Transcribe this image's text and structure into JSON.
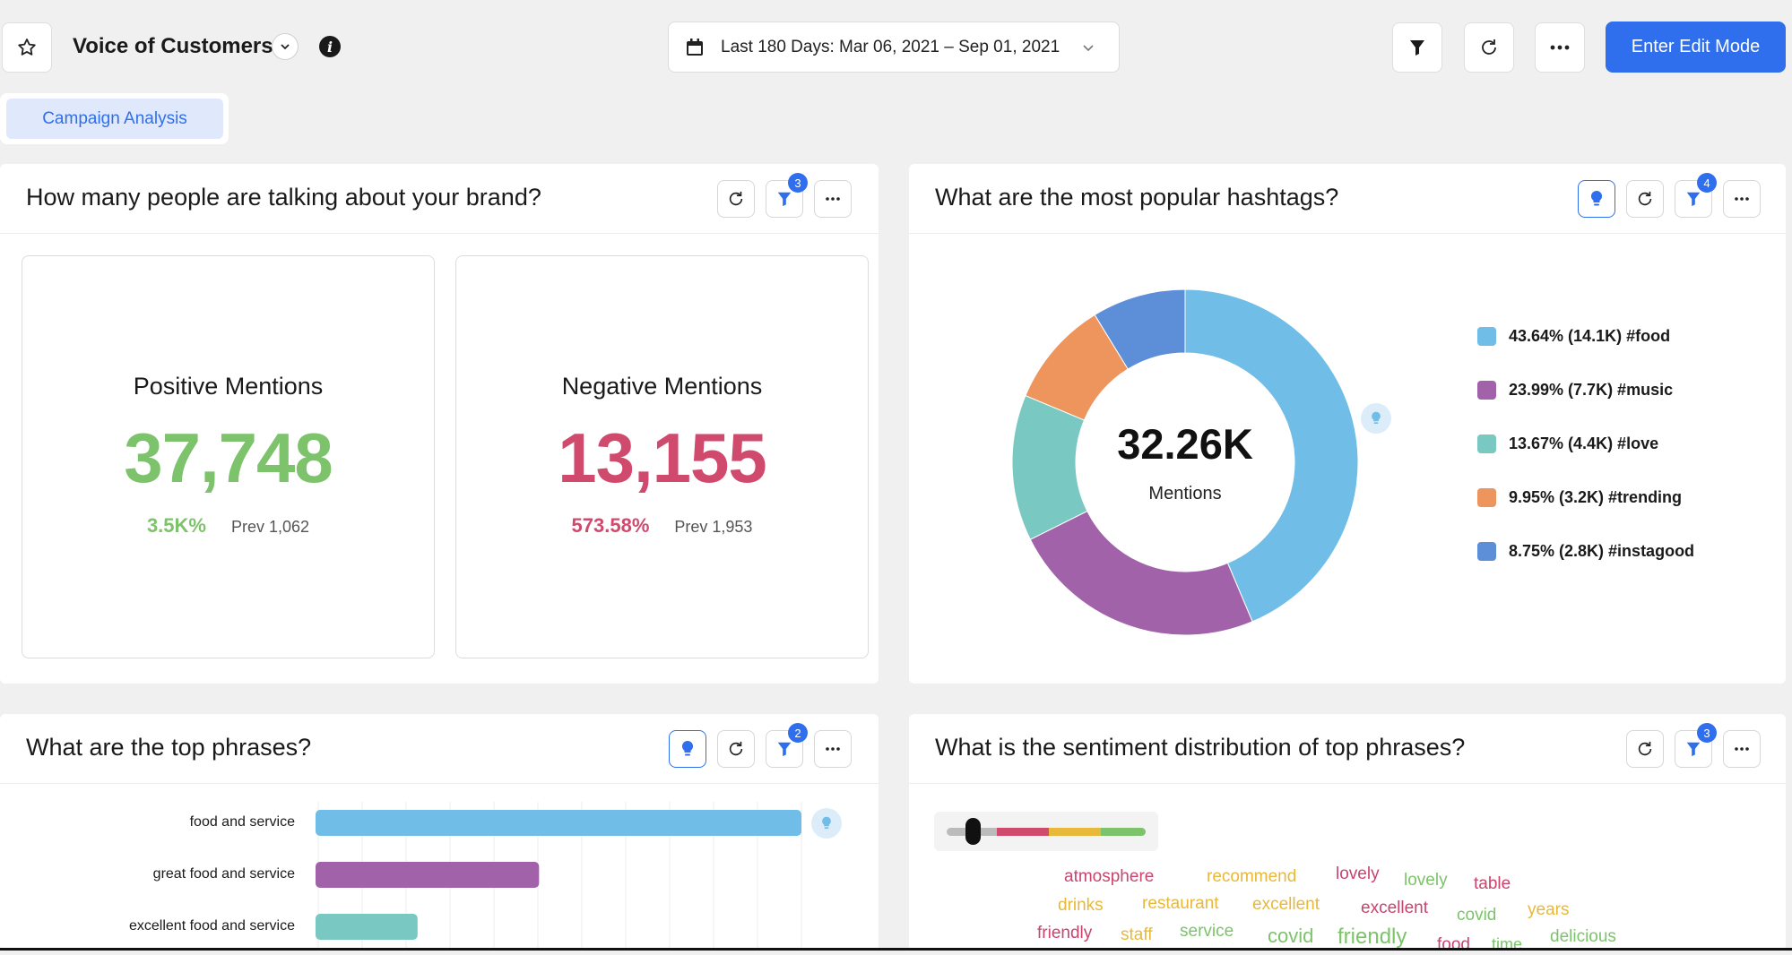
{
  "header": {
    "title": "Voice of Customers",
    "date_range": "Last 180 Days: Mar 06, 2021 – Sep 01, 2021",
    "edit_button": "Enter Edit Mode"
  },
  "tabs": [
    {
      "label": "Campaign Analysis"
    }
  ],
  "widgets": {
    "mentions": {
      "title": "How many people are talking about your brand?",
      "filter_count": "3",
      "positive": {
        "label": "Positive Mentions",
        "value": "37,748",
        "change": "3.5K%",
        "prev": "Prev 1,062"
      },
      "negative": {
        "label": "Negative Mentions",
        "value": "13,155",
        "change": "573.58%",
        "prev": "Prev 1,953"
      }
    },
    "hashtags": {
      "title": "What are the most popular hashtags?",
      "filter_count": "4",
      "center_value": "32.26K",
      "center_label": "Mentions"
    },
    "phrases": {
      "title": "What are the top phrases?",
      "filter_count": "2"
    },
    "sentiment": {
      "title": "What is the sentiment distribution of top phrases?",
      "filter_count": "3",
      "words": [
        {
          "text": "atmosphere",
          "color": "#c8456e"
        },
        {
          "text": "recommend",
          "color": "#e8b83a"
        },
        {
          "text": "lovely",
          "color": "#c8456e"
        },
        {
          "text": "lovely",
          "color": "#7dc36b"
        },
        {
          "text": "table",
          "color": "#c8456e"
        },
        {
          "text": "drinks",
          "color": "#e8b83a"
        },
        {
          "text": "restaurant",
          "color": "#e8b83a"
        },
        {
          "text": "excellent",
          "color": "#e8b83a"
        },
        {
          "text": "excellent",
          "color": "#c8456e"
        },
        {
          "text": "covid",
          "color": "#7dc36b"
        },
        {
          "text": "years",
          "color": "#e8b83a"
        },
        {
          "text": "friendly",
          "color": "#c8456e"
        },
        {
          "text": "staff",
          "color": "#e8b83a"
        },
        {
          "text": "service",
          "color": "#7dc36b"
        },
        {
          "text": "covid",
          "color": "#7dc36b"
        },
        {
          "text": "friendly",
          "color": "#7dc36b"
        },
        {
          "text": "food",
          "color": "#c8456e"
        },
        {
          "text": "time",
          "color": "#7dc36b"
        },
        {
          "text": "delicious",
          "color": "#7dc36b"
        }
      ]
    }
  },
  "colors": {
    "accent": "#2f6fed",
    "positive": "#7dc36b",
    "negative": "#d04a6e"
  },
  "chart_data": [
    {
      "type": "pie",
      "title": "What are the most popular hashtags?",
      "total": "32.26K",
      "slices": [
        {
          "label": "43.64% (14.1K) #food",
          "percent": 43.64,
          "color": "#70bde8"
        },
        {
          "label": "23.99% (7.7K) #music",
          "percent": 23.99,
          "color": "#a162aa"
        },
        {
          "label": "13.67% (4.4K) #love",
          "percent": 13.67,
          "color": "#79c9c2"
        },
        {
          "label": "9.95% (3.2K) #trending",
          "percent": 9.95,
          "color": "#ee955d"
        },
        {
          "label": "8.75% (2.8K) #instagood",
          "percent": 8.75,
          "color": "#5d8fd9"
        }
      ]
    },
    {
      "type": "bar",
      "orientation": "horizontal",
      "title": "What are the top phrases?",
      "categories": [
        "food and service",
        "great food and service",
        "excellent food and service"
      ],
      "values": [
        100,
        46,
        21
      ],
      "colors": [
        "#70bde8",
        "#a162aa",
        "#79c9c2"
      ],
      "xlim": [
        0,
        110
      ]
    }
  ]
}
